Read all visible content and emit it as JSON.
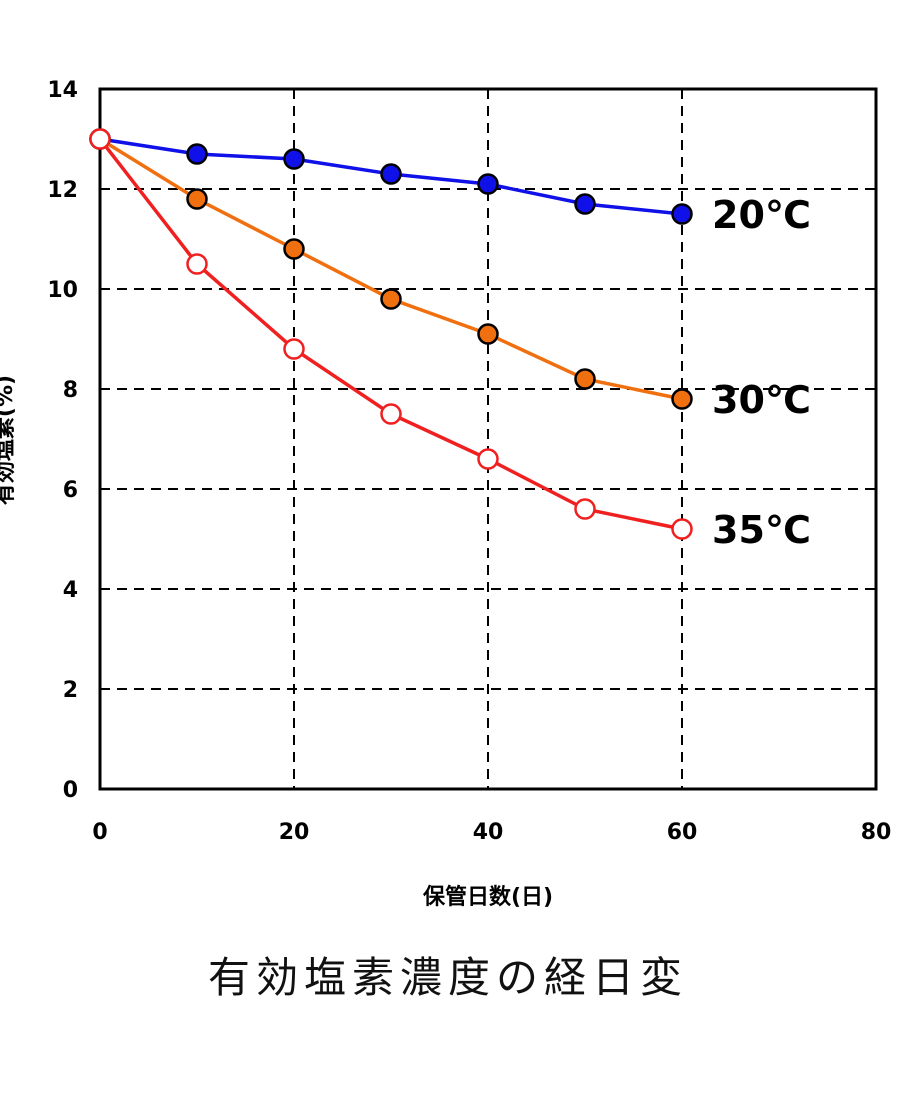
{
  "chart_data": {
    "type": "line",
    "caption": "有効塩素濃度の経日変",
    "xlabel": "保管日数(日)",
    "ylabel": "有効塩素(%)",
    "xlim": [
      0,
      80
    ],
    "ylim": [
      0,
      14
    ],
    "x_ticks": [
      "0",
      "20",
      "40",
      "60",
      "80"
    ],
    "y_ticks": [
      "0",
      "2",
      "4",
      "6",
      "8",
      "10",
      "12",
      "14"
    ],
    "grid": true,
    "legend": "inline-right",
    "x": [
      0,
      10,
      20,
      30,
      40,
      50,
      60
    ],
    "series": [
      {
        "name": "20℃",
        "color": "#1010e8",
        "marker": "filled",
        "values": [
          13.0,
          12.7,
          12.6,
          12.3,
          12.1,
          11.7,
          11.5
        ]
      },
      {
        "name": "30℃",
        "color": "#f07010",
        "marker": "filled",
        "values": [
          13.0,
          11.8,
          10.8,
          9.8,
          9.1,
          8.2,
          7.8
        ]
      },
      {
        "name": "35℃",
        "color": "#f02020",
        "marker": "hollow",
        "values": [
          13.0,
          10.5,
          8.8,
          7.5,
          6.6,
          5.6,
          5.2
        ]
      }
    ]
  }
}
